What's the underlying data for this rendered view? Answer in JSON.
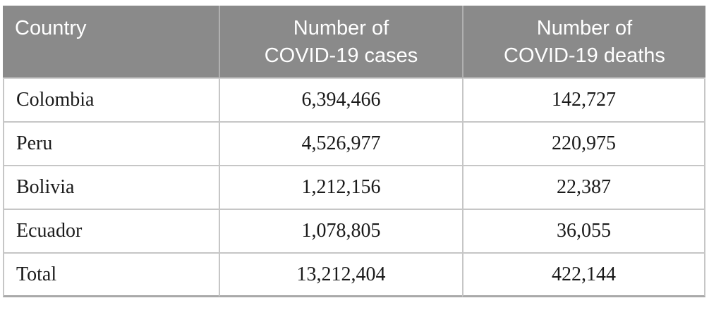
{
  "table": {
    "columns": [
      {
        "name": "country",
        "lines": [
          "Country"
        ]
      },
      {
        "name": "cases",
        "lines": [
          "Number of",
          "COVID-19 cases"
        ]
      },
      {
        "name": "deaths",
        "lines": [
          "Number of",
          "COVID-19 deaths"
        ]
      }
    ],
    "rows": [
      {
        "country": "Colombia",
        "cases": "6,394,466",
        "deaths": "142,727"
      },
      {
        "country": "Peru",
        "cases": "4,526,977",
        "deaths": "220,975"
      },
      {
        "country": "Bolivia",
        "cases": "1,212,156",
        "deaths": "22,387"
      },
      {
        "country": "Ecuador",
        "cases": "1,078,805",
        "deaths": "36,055"
      },
      {
        "country": "Total",
        "cases": "13,212,404",
        "deaths": "422,144"
      }
    ]
  },
  "chart_data": {
    "type": "table",
    "title": "",
    "columns": [
      "Country",
      "Number of COVID-19 cases",
      "Number of COVID-19 deaths"
    ],
    "rows": [
      [
        "Colombia",
        6394466,
        142727
      ],
      [
        "Peru",
        4526977,
        220975
      ],
      [
        "Bolivia",
        1212156,
        22387
      ],
      [
        "Ecuador",
        1078805,
        36055
      ],
      [
        "Total",
        13212404,
        422144
      ]
    ]
  },
  "colors": {
    "header_background": "#8a8a8a",
    "header_text": "#ffffff",
    "header_divider": "#b0b0b0",
    "body_border": "#c6c6c6",
    "bottom_border": "#a9a9a9",
    "body_text": "#1a1a1a",
    "page_background": "#ffffff"
  }
}
